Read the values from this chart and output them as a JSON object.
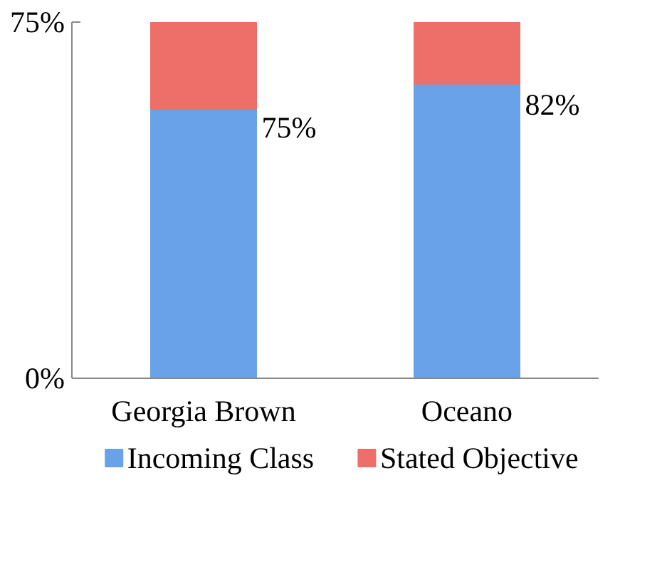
{
  "chart_data": {
    "type": "bar",
    "stacked": true,
    "categories": [
      "Georgia Brown",
      "Oceano"
    ],
    "series": [
      {
        "name": "Incoming Class",
        "color": "#6aa2ea",
        "values": [
          56.7,
          62
        ]
      },
      {
        "name": "Stated Objective",
        "color": "#ee6f6a",
        "values": [
          18.3,
          13
        ]
      }
    ],
    "ylim": [
      0,
      75
    ],
    "yticks": [
      {
        "value": 0,
        "label": "0%"
      },
      {
        "value": 75,
        "label": "75%"
      }
    ],
    "annotations": [
      "75%",
      "82%"
    ],
    "legend": "bottom"
  }
}
